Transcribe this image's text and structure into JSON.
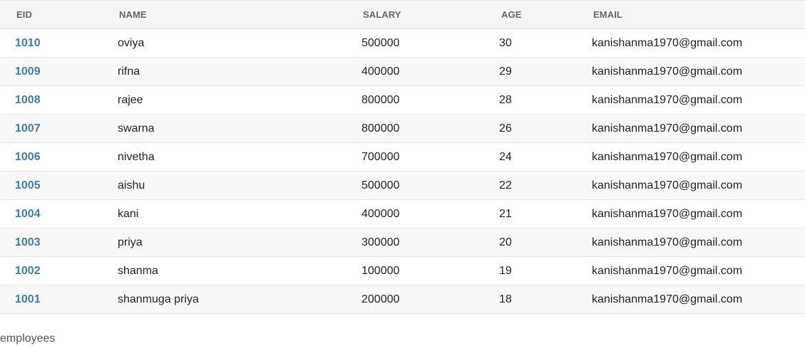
{
  "table": {
    "headers": {
      "eid": "EID",
      "name": "NAME",
      "salary": "SALARY",
      "age": "AGE",
      "email": "EMAIL"
    },
    "rows": [
      {
        "eid": "1010",
        "name": "oviya",
        "salary": "500000",
        "age": "30",
        "email": "kanishanma1970@gmail.com"
      },
      {
        "eid": "1009",
        "name": "rifna",
        "salary": "400000",
        "age": "29",
        "email": "kanishanma1970@gmail.com"
      },
      {
        "eid": "1008",
        "name": "rajee",
        "salary": "800000",
        "age": "28",
        "email": "kanishanma1970@gmail.com"
      },
      {
        "eid": "1007",
        "name": "swarna",
        "salary": "800000",
        "age": "26",
        "email": "kanishanma1970@gmail.com"
      },
      {
        "eid": "1006",
        "name": "nivetha",
        "salary": "700000",
        "age": "24",
        "email": "kanishanma1970@gmail.com"
      },
      {
        "eid": "1005",
        "name": "aishu",
        "salary": "500000",
        "age": "22",
        "email": "kanishanma1970@gmail.com"
      },
      {
        "eid": "1004",
        "name": "kani",
        "salary": "400000",
        "age": "21",
        "email": "kanishanma1970@gmail.com"
      },
      {
        "eid": "1003",
        "name": "priya",
        "salary": "300000",
        "age": "20",
        "email": "kanishanma1970@gmail.com"
      },
      {
        "eid": "1002",
        "name": "shanma",
        "salary": "100000",
        "age": "19",
        "email": "kanishanma1970@gmail.com"
      },
      {
        "eid": "1001",
        "name": "shanmuga priya",
        "salary": "200000",
        "age": "18",
        "email": "kanishanma1970@gmail.com"
      }
    ]
  },
  "caption": "employees",
  "colors": {
    "eid_link": "#3d7ea6",
    "header_bg": "#f5f5f5",
    "row_alt_bg": "#f8f8f8",
    "border": "#e6e6e6"
  }
}
